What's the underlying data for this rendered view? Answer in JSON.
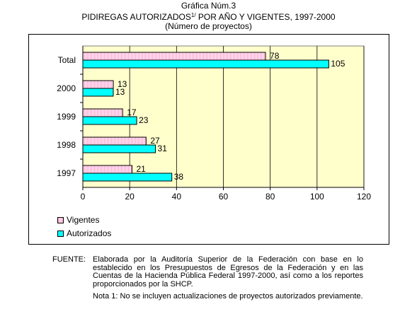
{
  "chart_data": {
    "type": "bar",
    "orientation": "horizontal",
    "title_lines": [
      "Gráfica Núm.3",
      "PIDIREGAS AUTORIZADOS",
      "(Número de proyectos)"
    ],
    "title_superscript": "1/",
    "title_suffix": " POR AÑO Y VIGENTES, 1997-2000",
    "categories": [
      "Total",
      "2000",
      "1999",
      "1998",
      "1997"
    ],
    "series": [
      {
        "name": "Vigentes",
        "values": [
          78,
          13,
          17,
          27,
          21
        ],
        "color": "#ff99cc"
      },
      {
        "name": "Autorizados",
        "values": [
          105,
          13,
          23,
          31,
          38
        ],
        "color": "#00ffff"
      }
    ],
    "xlim": [
      0,
      120
    ],
    "x_ticks": [
      0,
      20,
      40,
      60,
      80,
      100,
      120
    ],
    "x_tick_labels": [
      "0",
      "20",
      "40",
      "60",
      "80",
      "100",
      "120"
    ],
    "grid": true,
    "legend_position": "bottom-left",
    "plot_background": "#ffffcc"
  },
  "source": {
    "label": "FUENTE:",
    "text": "Elaborada por la Auditoría Superior de la Federación con base en lo establecido en los Presupuestos de Egresos de la Federación y en las Cuentas de la Hacienda Pública Federal 1997-2000, así como a los reportes proporcionados por la SHCP.",
    "note": "Nota 1: No se incluyen actualizaciones de proyectos autorizados previamente."
  }
}
